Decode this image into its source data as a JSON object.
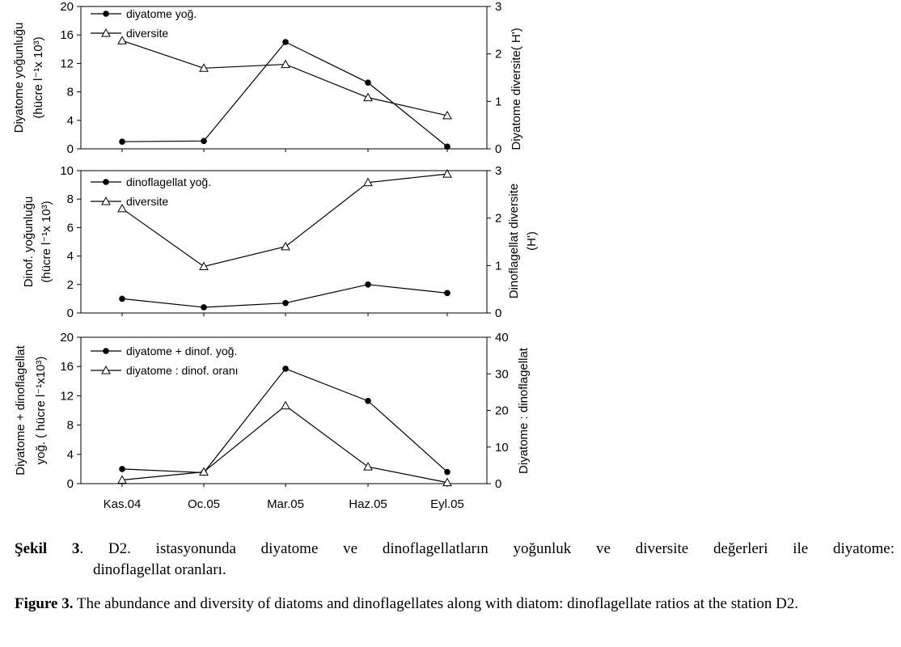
{
  "chart_data": [
    {
      "type": "line",
      "categories": [
        "Kas.04",
        "Oc.05",
        "Mar.05",
        "Haz.05",
        "Eyl.05"
      ],
      "ylabel_left": [
        "Diyatome  yoğunluğu",
        "(hücre l⁻¹x 10³)"
      ],
      "ylabel_right": "Diyatome diversite( H')",
      "ylim_left": [
        0,
        20
      ],
      "yticks_left": [
        0,
        4,
        8,
        12,
        16,
        20
      ],
      "ylim_right": [
        0,
        3
      ],
      "yticks_right": [
        0,
        1,
        2,
        3
      ],
      "legend_position": "top-left",
      "series": [
        {
          "name": "diyatome yoğ.",
          "marker": "filled-circle",
          "axis": "left",
          "values": [
            1.0,
            1.1,
            15.0,
            9.3,
            0.3
          ]
        },
        {
          "name": "diversite",
          "marker": "open-triangle",
          "axis": "right",
          "values": [
            2.28,
            1.7,
            1.78,
            1.08,
            0.7
          ]
        }
      ]
    },
    {
      "type": "line",
      "categories": [
        "Kas.04",
        "Oc.05",
        "Mar.05",
        "Haz.05",
        "Eyl.05"
      ],
      "ylabel_left": [
        "Dinof. yoğunluğu",
        "(hücre l⁻¹x 10³)"
      ],
      "ylabel_right": [
        "Dinoflagellat diversite",
        "(H')"
      ],
      "ylim_left": [
        0,
        10
      ],
      "yticks_left": [
        0,
        2,
        4,
        6,
        8,
        10
      ],
      "ylim_right": [
        0,
        3
      ],
      "yticks_right": [
        0,
        1,
        2,
        3
      ],
      "legend_position": "top-left",
      "series": [
        {
          "name": "dinoflagellat yoğ.",
          "marker": "filled-circle",
          "axis": "left",
          "values": [
            1.0,
            0.4,
            0.7,
            2.0,
            1.4
          ]
        },
        {
          "name": "diversite",
          "marker": "open-triangle",
          "axis": "right",
          "values": [
            2.2,
            0.98,
            1.4,
            2.75,
            2.93
          ]
        }
      ]
    },
    {
      "type": "line",
      "categories": [
        "Kas.04",
        "Oc.05",
        "Mar.05",
        "Haz.05",
        "Eyl.05"
      ],
      "ylabel_left": [
        "Diyatome + dinoflagellat",
        "yoğ. ( hücre l⁻¹x10³)"
      ],
      "ylabel_right": "Diyatome : dinoflagellat",
      "ylim_left": [
        0,
        20
      ],
      "yticks_left": [
        0,
        4,
        8,
        12,
        16,
        20
      ],
      "ylim_right": [
        0,
        40
      ],
      "yticks_right": [
        0,
        10,
        20,
        30,
        40
      ],
      "legend_position": "top-left",
      "series": [
        {
          "name": "diyatome + dinof. yoğ.",
          "marker": "filled-circle",
          "axis": "left",
          "values": [
            2.0,
            1.5,
            15.7,
            11.3,
            1.6
          ]
        },
        {
          "name": "diyatome : dinof. oranı",
          "marker": "open-triangle",
          "axis": "right",
          "values": [
            1.0,
            3.2,
            21.3,
            4.6,
            0.3
          ]
        }
      ]
    }
  ],
  "caption_tr": {
    "label": "Şekil 3",
    "text_line1": ". D2. istasyonunda diyatome ve dinoflagellatların yoğunluk ve diversite değerleri ile diyatome:",
    "text_line2": "dinoflagellat oranları."
  },
  "caption_en": {
    "label": "Figure 3.",
    "text": " The abundance and diversity of diatoms and dinoflagellates along with diatom: dinoflagellate ratios at the station D2."
  }
}
